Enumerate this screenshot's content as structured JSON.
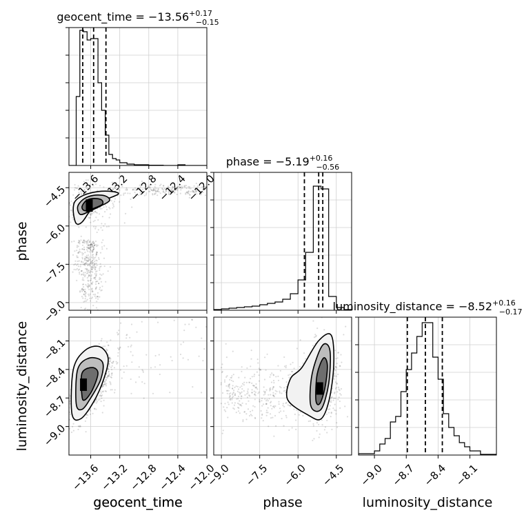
{
  "chart_data": {
    "type": "corner",
    "parameters": [
      "geocent_time",
      "phase",
      "luminosity_distance"
    ],
    "panels": [
      {
        "id": "hist-geocent_time",
        "type": "histogram",
        "param": "geocent_time",
        "title": {
          "prefix": "geocent_time = ",
          "value": "−13.56",
          "plus": "+0.17",
          "minus": "−0.15"
        },
        "xlim": [
          -13.9,
          -12.0
        ],
        "xticks": [
          -13.6,
          -13.2,
          -12.8,
          -12.4,
          -12.0
        ],
        "xtick_labels": [
          "−13.6",
          "−13.2",
          "−12.8",
          "−12.4",
          "−12.0"
        ],
        "show_xtick_labels": true,
        "xlabel": "geocent_time",
        "ymax": 1.0,
        "bin_edges": [
          -13.9,
          -13.8,
          -13.75,
          -13.7,
          -13.65,
          -13.6,
          -13.55,
          -13.5,
          -13.45,
          -13.4,
          -13.35,
          -13.3,
          -13.25,
          -13.2,
          -13.1,
          -13.0,
          -12.8,
          -12.6,
          -12.4,
          -12.3,
          -12.0
        ],
        "counts": [
          0,
          0.5,
          0.98,
          0.97,
          0.91,
          0.92,
          0.92,
          0.6,
          0.4,
          0.22,
          0.08,
          0.05,
          0.04,
          0.02,
          0.01,
          0.005,
          0.002,
          0,
          0.005,
          0
        ],
        "quantiles": [
          -13.71,
          -13.56,
          -13.39
        ]
      },
      {
        "id": "hist-phase",
        "type": "histogram",
        "param": "phase",
        "title": {
          "prefix": "phase = ",
          "value": "−5.19",
          "plus": "+0.16",
          "minus": "−0.56"
        },
        "xlim": [
          -9.3,
          -3.9
        ],
        "xticks": [
          -9.0,
          -7.5,
          -6.0,
          -4.5
        ],
        "show_xtick_labels": false,
        "ymax": 1.0,
        "bin_edges": [
          -9.3,
          -9.0,
          -8.7,
          -8.4,
          -8.1,
          -7.8,
          -7.5,
          -7.2,
          -6.9,
          -6.6,
          -6.3,
          -6.0,
          -5.7,
          -5.4,
          -5.1,
          -4.8,
          -4.5,
          -4.2,
          -3.9
        ],
        "counts": [
          0.005,
          0.01,
          0.015,
          0.02,
          0.025,
          0.03,
          0.04,
          0.05,
          0.06,
          0.08,
          0.12,
          0.22,
          0.42,
          0.9,
          0.88,
          0.1,
          0.02,
          0.005
        ],
        "quantiles": [
          -5.75,
          -5.19,
          -5.03
        ]
      },
      {
        "id": "hist-luminosity_distance",
        "type": "histogram",
        "param": "luminosity_distance",
        "title": {
          "prefix": "luminosity_distance = ",
          "value": "−8.52",
          "plus": "+0.16",
          "minus": "−0.17"
        },
        "xlim": [
          -9.15,
          -7.85
        ],
        "xticks": [
          -9.0,
          -8.7,
          -8.4,
          -8.1
        ],
        "xtick_labels": [
          "−9.0",
          "−8.7",
          "−8.4",
          "−8.1"
        ],
        "show_xtick_labels": true,
        "xlabel": "luminosity_distance",
        "ymax": 1.0,
        "bin_edges": [
          -9.15,
          -9.0,
          -8.95,
          -8.9,
          -8.85,
          -8.8,
          -8.75,
          -8.7,
          -8.65,
          -8.6,
          -8.55,
          -8.5,
          -8.45,
          -8.4,
          -8.35,
          -8.3,
          -8.25,
          -8.2,
          -8.15,
          -8.1,
          -8.0,
          -7.85
        ],
        "counts": [
          0.01,
          0.03,
          0.08,
          0.12,
          0.24,
          0.28,
          0.46,
          0.62,
          0.74,
          0.86,
          0.96,
          0.96,
          0.71,
          0.55,
          0.3,
          0.2,
          0.14,
          0.09,
          0.06,
          0.03,
          0.005
        ],
        "quantiles": [
          -8.69,
          -8.52,
          -8.36
        ]
      },
      {
        "id": "2d-phase-vs-geocent_time",
        "type": "2d-density",
        "xparam": "geocent_time",
        "yparam": "phase",
        "xlim": [
          -13.9,
          -12.0
        ],
        "ylim": [
          -9.3,
          -3.9
        ],
        "xticks": [
          -13.6,
          -13.2,
          -12.8,
          -12.4,
          -12.0
        ],
        "yticks": [
          -9.0,
          -7.5,
          -6.0,
          -4.5
        ],
        "ytick_labels": [
          "−9.0",
          "−7.5",
          "−6.0",
          "−4.5"
        ],
        "show_xtick_labels": false,
        "show_ytick_labels": true,
        "ylabel": "phase",
        "peak": {
          "x": -13.62,
          "y": -5.2
        },
        "contour_inner": [
          [
            -13.72,
            -5.25
          ],
          [
            -13.66,
            -5.0
          ],
          [
            -13.55,
            -4.92
          ],
          [
            -13.45,
            -4.98
          ],
          [
            -13.44,
            -5.15
          ],
          [
            -13.55,
            -5.3
          ],
          [
            -13.68,
            -5.4
          ]
        ],
        "contour_middle": [
          [
            -13.78,
            -5.25
          ],
          [
            -13.7,
            -4.95
          ],
          [
            -13.56,
            -4.8
          ],
          [
            -13.4,
            -4.82
          ],
          [
            -13.34,
            -5.0
          ],
          [
            -13.45,
            -5.2
          ],
          [
            -13.6,
            -5.4
          ],
          [
            -13.74,
            -5.55
          ]
        ],
        "contour_outer": [
          [
            -13.84,
            -5.45
          ],
          [
            -13.82,
            -5.05
          ],
          [
            -13.7,
            -4.8
          ],
          [
            -13.5,
            -4.65
          ],
          [
            -13.3,
            -4.65
          ],
          [
            -13.22,
            -4.75
          ],
          [
            -13.38,
            -4.95
          ],
          [
            -13.52,
            -5.15
          ],
          [
            -13.62,
            -5.45
          ],
          [
            -13.72,
            -5.85
          ],
          [
            -13.8,
            -5.9
          ]
        ],
        "scatter_seed": 11
      },
      {
        "id": "2d-luminosity_distance-vs-geocent_time",
        "type": "2d-density",
        "xparam": "geocent_time",
        "yparam": "luminosity_distance",
        "xlim": [
          -13.9,
          -12.0
        ],
        "ylim": [
          -9.3,
          -7.85
        ],
        "xticks": [
          -13.6,
          -13.2,
          -12.8,
          -12.4,
          -12.0
        ],
        "xtick_labels": [
          "−13.6",
          "−13.2",
          "−12.8",
          "−12.4",
          "−12.0"
        ],
        "yticks": [
          -9.0,
          -8.7,
          -8.4,
          -8.1
        ],
        "ytick_labels": [
          "−9.0",
          "−8.7",
          "−8.4",
          "−8.1"
        ],
        "show_xtick_labels": true,
        "show_ytick_labels": true,
        "xlabel": "geocent_time",
        "ylabel": "luminosity_distance",
        "peak": {
          "x": -13.7,
          "y": -8.56
        },
        "contour_inner": [
          [
            -13.72,
            -8.68
          ],
          [
            -13.72,
            -8.44
          ],
          [
            -13.58,
            -8.38
          ],
          [
            -13.5,
            -8.44
          ],
          [
            -13.58,
            -8.62
          ],
          [
            -13.68,
            -8.72
          ]
        ],
        "contour_middle": [
          [
            -13.8,
            -8.76
          ],
          [
            -13.78,
            -8.4
          ],
          [
            -13.62,
            -8.28
          ],
          [
            -13.44,
            -8.32
          ],
          [
            -13.46,
            -8.5
          ],
          [
            -13.6,
            -8.7
          ],
          [
            -13.72,
            -8.82
          ]
        ],
        "contour_outer": [
          [
            -13.86,
            -8.86
          ],
          [
            -13.84,
            -8.4
          ],
          [
            -13.68,
            -8.2
          ],
          [
            -13.48,
            -8.16
          ],
          [
            -13.36,
            -8.28
          ],
          [
            -13.42,
            -8.5
          ],
          [
            -13.56,
            -8.74
          ],
          [
            -13.74,
            -8.92
          ]
        ],
        "scatter_seed": 23
      },
      {
        "id": "2d-luminosity_distance-vs-phase",
        "type": "2d-density",
        "xparam": "phase",
        "yparam": "luminosity_distance",
        "xlim": [
          -9.3,
          -3.9
        ],
        "ylim": [
          -9.3,
          -7.85
        ],
        "xticks": [
          -9.0,
          -7.5,
          -6.0,
          -4.5
        ],
        "xtick_labels": [
          "−9.0",
          "−7.5",
          "−6.0",
          "−4.5"
        ],
        "yticks": [
          -9.0,
          -8.7,
          -8.4,
          -8.1
        ],
        "show_xtick_labels": true,
        "show_ytick_labels": false,
        "xlabel": "phase",
        "peak": {
          "x": -5.15,
          "y": -8.6
        },
        "contour_inner": [
          [
            -5.3,
            -8.72
          ],
          [
            -5.25,
            -8.45
          ],
          [
            -5.0,
            -8.28
          ],
          [
            -4.85,
            -8.36
          ],
          [
            -4.95,
            -8.6
          ],
          [
            -5.15,
            -8.76
          ]
        ],
        "contour_middle": [
          [
            -5.5,
            -8.78
          ],
          [
            -5.45,
            -8.45
          ],
          [
            -5.05,
            -8.15
          ],
          [
            -4.75,
            -8.2
          ],
          [
            -4.8,
            -8.55
          ],
          [
            -5.1,
            -8.82
          ]
        ],
        "contour_outer": [
          [
            -6.4,
            -8.72
          ],
          [
            -6.3,
            -8.5
          ],
          [
            -5.85,
            -8.38
          ],
          [
            -5.2,
            -8.1
          ],
          [
            -4.7,
            -8.04
          ],
          [
            -4.6,
            -8.35
          ],
          [
            -4.78,
            -8.72
          ],
          [
            -5.1,
            -8.92
          ],
          [
            -5.6,
            -8.88
          ]
        ],
        "scatter_seed": 37
      }
    ]
  }
}
